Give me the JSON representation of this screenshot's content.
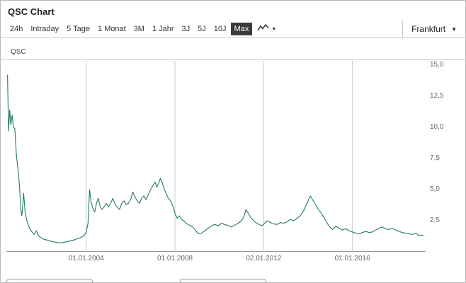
{
  "header": {
    "title": "QSC Chart"
  },
  "toolbar": {
    "tabs": [
      {
        "label": "24h",
        "selected": false
      },
      {
        "label": "Intraday",
        "selected": false
      },
      {
        "label": "5 Tage",
        "selected": false
      },
      {
        "label": "1 Monat",
        "selected": false
      },
      {
        "label": "3M",
        "selected": false
      },
      {
        "label": "1 Jahr",
        "selected": false
      },
      {
        "label": "3J",
        "selected": false
      },
      {
        "label": "5J",
        "selected": false
      },
      {
        "label": "10J",
        "selected": false
      },
      {
        "label": "Max",
        "selected": true
      }
    ],
    "chart_type_icon": "line-chart-icon",
    "dropdown_caret": "▼",
    "exchange": "Frankfurt"
  },
  "colors": {
    "line": "#257a5a",
    "selected_tab_bg": "#3b3b3b",
    "gridline": "#cccccc",
    "axis_line": "#999999",
    "tick_text": "#666666"
  },
  "chart_data": {
    "type": "line",
    "title": "QSC Chart",
    "legend": "QSC",
    "xlabel": "",
    "ylabel": "",
    "grid": "vertical-only",
    "legend_position": "top-left",
    "y_axis_side": "right",
    "xlim": [
      2000.4,
      2019.3
    ],
    "ylim": [
      0,
      15.34
    ],
    "x_ticks": [
      {
        "x": 2004.0,
        "label": "01.01.2004"
      },
      {
        "x": 2008.0,
        "label": "01.01.2008"
      },
      {
        "x": 2012.0,
        "label": "02.01.2012"
      },
      {
        "x": 2016.0,
        "label": "01.01.2016"
      }
    ],
    "y_ticks": [
      {
        "value": 15.0,
        "label": "15,0"
      },
      {
        "value": 12.5,
        "label": "12,5"
      },
      {
        "value": 10.0,
        "label": "10,0"
      },
      {
        "value": 7.5,
        "label": "7,5"
      },
      {
        "value": 5.0,
        "label": "5,0"
      },
      {
        "value": 2.5,
        "label": "2,5"
      }
    ],
    "series": [
      {
        "name": "QSC",
        "color": "#257a5a",
        "points": [
          [
            2000.45,
            14.2
          ],
          [
            2000.5,
            9.7
          ],
          [
            2000.55,
            11.4
          ],
          [
            2000.6,
            10.2
          ],
          [
            2000.66,
            11.0
          ],
          [
            2000.72,
            10.0
          ],
          [
            2000.78,
            9.9
          ],
          [
            2000.85,
            7.8
          ],
          [
            2000.95,
            6.2
          ],
          [
            2001.0,
            5.0
          ],
          [
            2001.05,
            3.4
          ],
          [
            2001.1,
            2.9
          ],
          [
            2001.18,
            4.7
          ],
          [
            2001.25,
            3.1
          ],
          [
            2001.35,
            2.3
          ],
          [
            2001.45,
            1.9
          ],
          [
            2001.55,
            1.6
          ],
          [
            2001.65,
            1.4
          ],
          [
            2001.75,
            1.7
          ],
          [
            2001.85,
            1.3
          ],
          [
            2001.95,
            1.15
          ],
          [
            2002.1,
            1.0
          ],
          [
            2002.25,
            0.95
          ],
          [
            2002.4,
            0.85
          ],
          [
            2002.55,
            0.8
          ],
          [
            2002.7,
            0.75
          ],
          [
            2002.85,
            0.72
          ],
          [
            2003.0,
            0.78
          ],
          [
            2003.15,
            0.82
          ],
          [
            2003.3,
            0.9
          ],
          [
            2003.45,
            0.95
          ],
          [
            2003.6,
            1.05
          ],
          [
            2003.75,
            1.15
          ],
          [
            2003.9,
            1.3
          ],
          [
            2004.0,
            1.6
          ],
          [
            2004.08,
            2.3
          ],
          [
            2004.15,
            5.0
          ],
          [
            2004.22,
            4.0
          ],
          [
            2004.3,
            3.5
          ],
          [
            2004.38,
            3.2
          ],
          [
            2004.46,
            3.9
          ],
          [
            2004.54,
            4.3
          ],
          [
            2004.62,
            3.7
          ],
          [
            2004.7,
            3.4
          ],
          [
            2004.8,
            3.6
          ],
          [
            2004.9,
            3.9
          ],
          [
            2005.0,
            3.6
          ],
          [
            2005.1,
            3.9
          ],
          [
            2005.2,
            4.3
          ],
          [
            2005.3,
            3.8
          ],
          [
            2005.4,
            3.6
          ],
          [
            2005.5,
            3.4
          ],
          [
            2005.6,
            3.9
          ],
          [
            2005.7,
            4.1
          ],
          [
            2005.8,
            3.8
          ],
          [
            2005.9,
            3.9
          ],
          [
            2006.0,
            4.2
          ],
          [
            2006.1,
            4.8
          ],
          [
            2006.2,
            4.4
          ],
          [
            2006.3,
            4.1
          ],
          [
            2006.4,
            3.9
          ],
          [
            2006.5,
            4.3
          ],
          [
            2006.6,
            4.5
          ],
          [
            2006.7,
            4.2
          ],
          [
            2006.8,
            4.6
          ],
          [
            2006.9,
            5.0
          ],
          [
            2007.0,
            5.3
          ],
          [
            2007.1,
            5.6
          ],
          [
            2007.18,
            5.2
          ],
          [
            2007.26,
            5.5
          ],
          [
            2007.34,
            5.9
          ],
          [
            2007.42,
            5.6
          ],
          [
            2007.5,
            5.1
          ],
          [
            2007.6,
            4.7
          ],
          [
            2007.7,
            4.3
          ],
          [
            2007.8,
            4.1
          ],
          [
            2007.9,
            3.7
          ],
          [
            2008.0,
            3.1
          ],
          [
            2008.1,
            2.7
          ],
          [
            2008.2,
            2.9
          ],
          [
            2008.3,
            2.6
          ],
          [
            2008.4,
            2.5
          ],
          [
            2008.5,
            2.3
          ],
          [
            2008.6,
            2.2
          ],
          [
            2008.7,
            2.1
          ],
          [
            2008.8,
            2.0
          ],
          [
            2008.9,
            1.8
          ],
          [
            2009.0,
            1.55
          ],
          [
            2009.1,
            1.45
          ],
          [
            2009.2,
            1.5
          ],
          [
            2009.35,
            1.7
          ],
          [
            2009.5,
            1.9
          ],
          [
            2009.65,
            2.1
          ],
          [
            2009.8,
            2.2
          ],
          [
            2009.95,
            2.1
          ],
          [
            2010.1,
            2.3
          ],
          [
            2010.25,
            2.2
          ],
          [
            2010.4,
            2.1
          ],
          [
            2010.55,
            2.0
          ],
          [
            2010.7,
            2.15
          ],
          [
            2010.85,
            2.3
          ],
          [
            2011.0,
            2.5
          ],
          [
            2011.1,
            2.8
          ],
          [
            2011.2,
            3.4
          ],
          [
            2011.3,
            3.1
          ],
          [
            2011.4,
            2.8
          ],
          [
            2011.5,
            2.6
          ],
          [
            2011.6,
            2.4
          ],
          [
            2011.7,
            2.3
          ],
          [
            2011.8,
            2.2
          ],
          [
            2011.9,
            2.1
          ],
          [
            2012.0,
            2.2
          ],
          [
            2012.15,
            2.5
          ],
          [
            2012.3,
            2.35
          ],
          [
            2012.45,
            2.25
          ],
          [
            2012.6,
            2.2
          ],
          [
            2012.75,
            2.35
          ],
          [
            2012.9,
            2.3
          ],
          [
            2013.05,
            2.4
          ],
          [
            2013.2,
            2.6
          ],
          [
            2013.35,
            2.5
          ],
          [
            2013.5,
            2.7
          ],
          [
            2013.65,
            2.9
          ],
          [
            2013.8,
            3.3
          ],
          [
            2013.9,
            3.7
          ],
          [
            2014.0,
            4.1
          ],
          [
            2014.1,
            4.5
          ],
          [
            2014.2,
            4.2
          ],
          [
            2014.3,
            3.9
          ],
          [
            2014.4,
            3.6
          ],
          [
            2014.5,
            3.3
          ],
          [
            2014.6,
            3.1
          ],
          [
            2014.7,
            2.8
          ],
          [
            2014.8,
            2.5
          ],
          [
            2014.9,
            2.2
          ],
          [
            2015.0,
            1.95
          ],
          [
            2015.1,
            1.8
          ],
          [
            2015.25,
            2.05
          ],
          [
            2015.4,
            1.9
          ],
          [
            2015.55,
            1.75
          ],
          [
            2015.7,
            1.85
          ],
          [
            2015.85,
            1.7
          ],
          [
            2016.0,
            1.6
          ],
          [
            2016.15,
            1.5
          ],
          [
            2016.3,
            1.45
          ],
          [
            2016.45,
            1.55
          ],
          [
            2016.6,
            1.65
          ],
          [
            2016.75,
            1.55
          ],
          [
            2016.9,
            1.6
          ],
          [
            2017.05,
            1.75
          ],
          [
            2017.2,
            1.9
          ],
          [
            2017.35,
            2.0
          ],
          [
            2017.5,
            1.85
          ],
          [
            2017.65,
            1.8
          ],
          [
            2017.8,
            1.9
          ],
          [
            2017.95,
            1.75
          ],
          [
            2018.1,
            1.65
          ],
          [
            2018.25,
            1.55
          ],
          [
            2018.4,
            1.5
          ],
          [
            2018.55,
            1.45
          ],
          [
            2018.7,
            1.4
          ],
          [
            2018.85,
            1.5
          ],
          [
            2019.0,
            1.3
          ],
          [
            2019.1,
            1.35
          ],
          [
            2019.2,
            1.3
          ]
        ]
      }
    ]
  }
}
